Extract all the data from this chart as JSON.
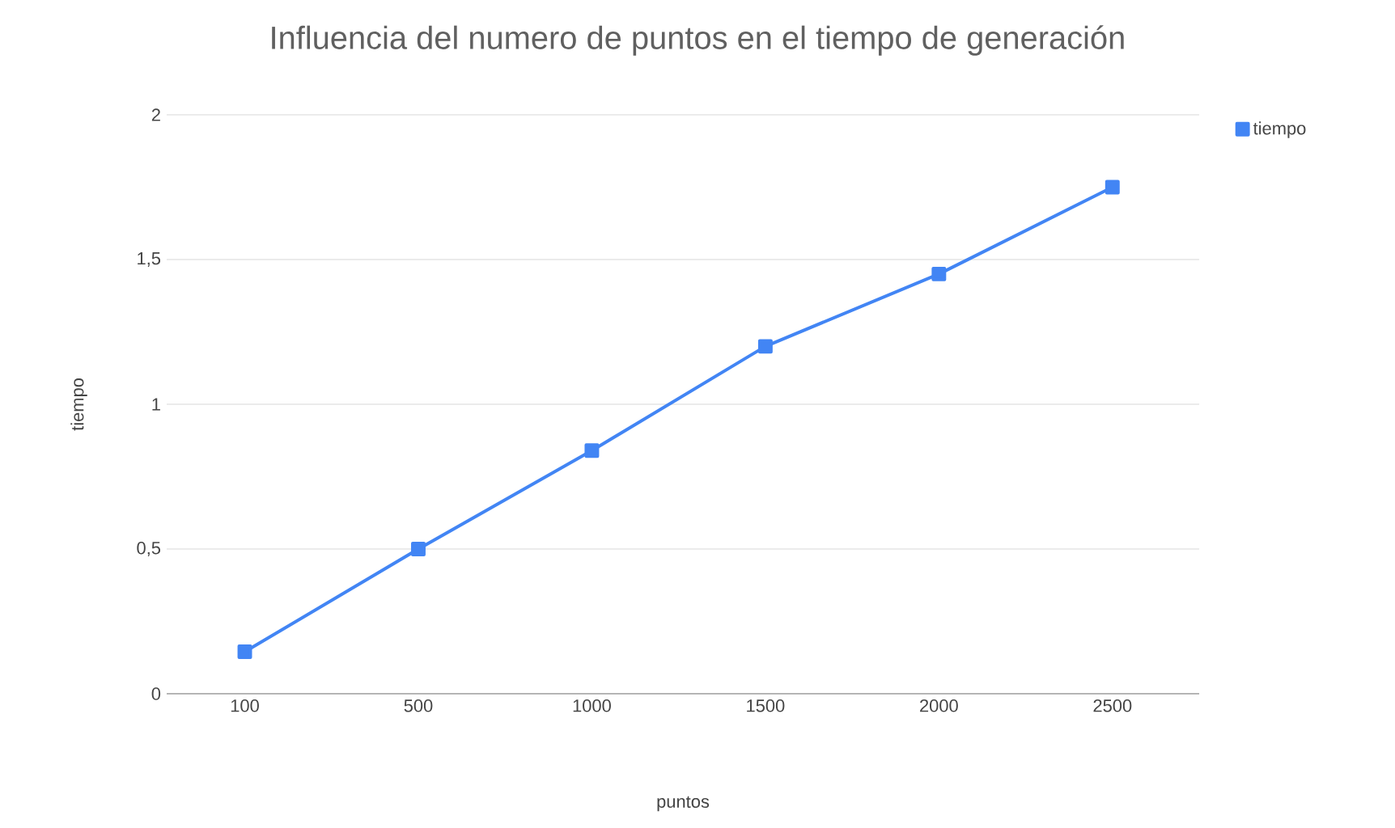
{
  "chart_data": {
    "type": "line",
    "title": "Influencia del numero de puntos en el tiempo de generación",
    "xlabel": "puntos",
    "ylabel": "tiempo",
    "categories": [
      "100",
      "500",
      "1000",
      "1500",
      "2000",
      "2500"
    ],
    "series": [
      {
        "name": "tiempo",
        "color": "#4285f4",
        "values": [
          0.145,
          0.5,
          0.84,
          1.2,
          1.45,
          1.75
        ]
      }
    ],
    "ylim": [
      0,
      2
    ],
    "yticks": [
      {
        "value": 0,
        "label": "0"
      },
      {
        "value": 0.5,
        "label": "0,5"
      },
      {
        "value": 1,
        "label": "1"
      },
      {
        "value": 1.5,
        "label": "1,5"
      },
      {
        "value": 2,
        "label": "2"
      }
    ],
    "grid": "y",
    "legend": "top right",
    "marker": "square",
    "line_style": "solid"
  }
}
